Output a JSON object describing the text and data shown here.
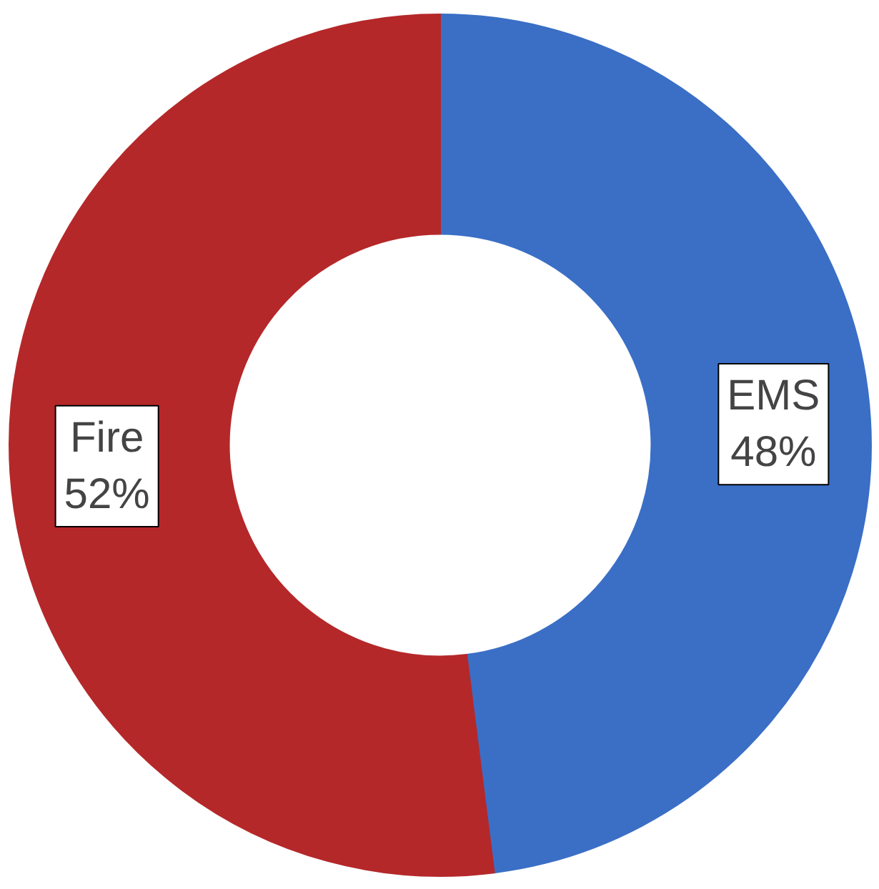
{
  "chart_data": {
    "type": "donut",
    "categories": [
      "EMS",
      "Fire"
    ],
    "values": [
      48,
      52
    ],
    "colors": [
      "#3b6fc6",
      "#b5282a"
    ],
    "value_labels": [
      "48%",
      "52%"
    ]
  }
}
